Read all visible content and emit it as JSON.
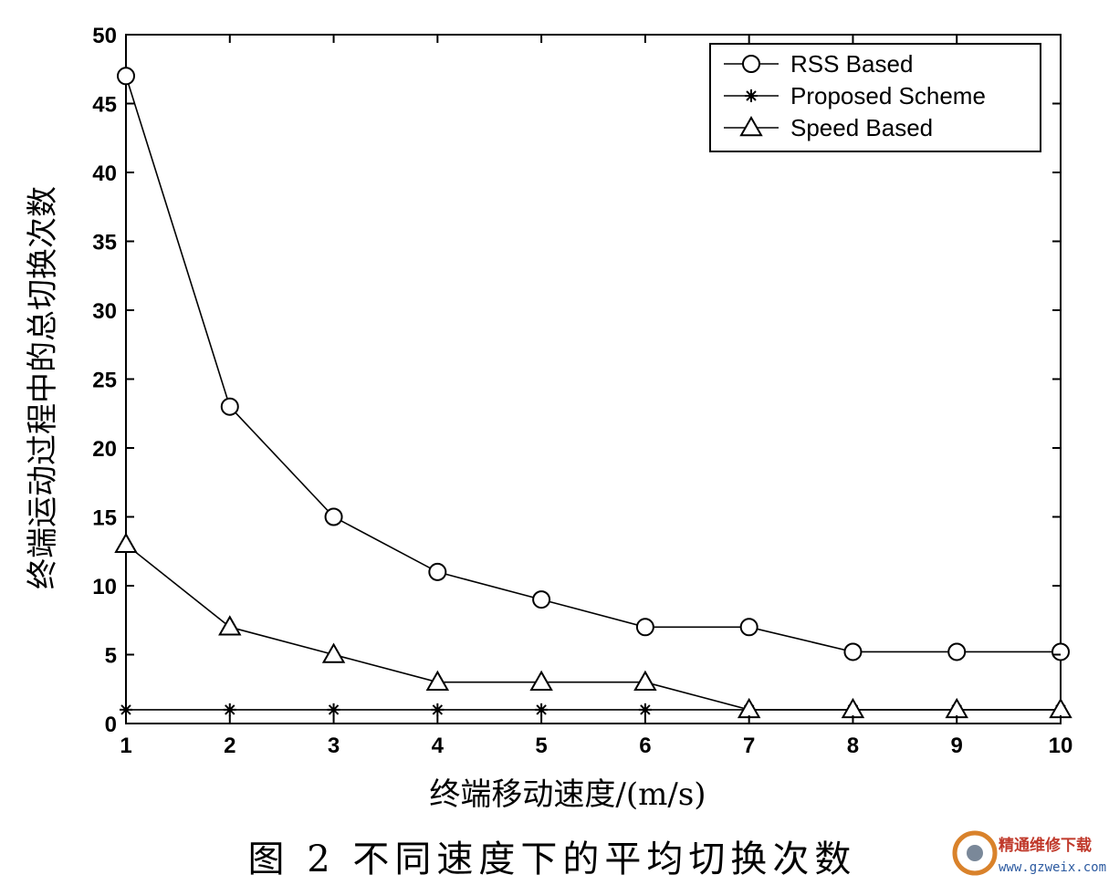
{
  "chart_data": {
    "type": "line",
    "x": [
      1,
      2,
      3,
      4,
      5,
      6,
      7,
      8,
      9,
      10
    ],
    "x_ticks": [
      "1",
      "2",
      "3",
      "4",
      "5",
      "6",
      "7",
      "8",
      "9",
      "10"
    ],
    "y_ticks": [
      "0",
      "5",
      "10",
      "15",
      "20",
      "25",
      "30",
      "35",
      "40",
      "45",
      "50"
    ],
    "xlim": [
      1,
      10
    ],
    "ylim": [
      0,
      50
    ],
    "xlabel": "终端移动速度/(m/s)",
    "ylabel": "终端运动过程中的总切换次数",
    "caption": "图 2 不同速度下的平均切换次数",
    "grid": false,
    "legend_position": "top-right",
    "series": [
      {
        "name": "RSS Based",
        "marker": "circle",
        "values": [
          47,
          23,
          15,
          11,
          9,
          7,
          7,
          5.2,
          5.2,
          5.2
        ]
      },
      {
        "name": "Proposed Scheme",
        "marker": "star",
        "values": [
          1,
          1,
          1,
          1,
          1,
          1,
          1,
          1,
          1,
          1
        ]
      },
      {
        "name": "Speed Based",
        "marker": "triangle",
        "values": [
          13,
          7,
          5,
          3,
          3,
          3,
          1,
          1,
          1,
          1
        ]
      }
    ]
  },
  "watermark": {
    "text": "精通维修下载",
    "url": "www.gzweix.com"
  }
}
